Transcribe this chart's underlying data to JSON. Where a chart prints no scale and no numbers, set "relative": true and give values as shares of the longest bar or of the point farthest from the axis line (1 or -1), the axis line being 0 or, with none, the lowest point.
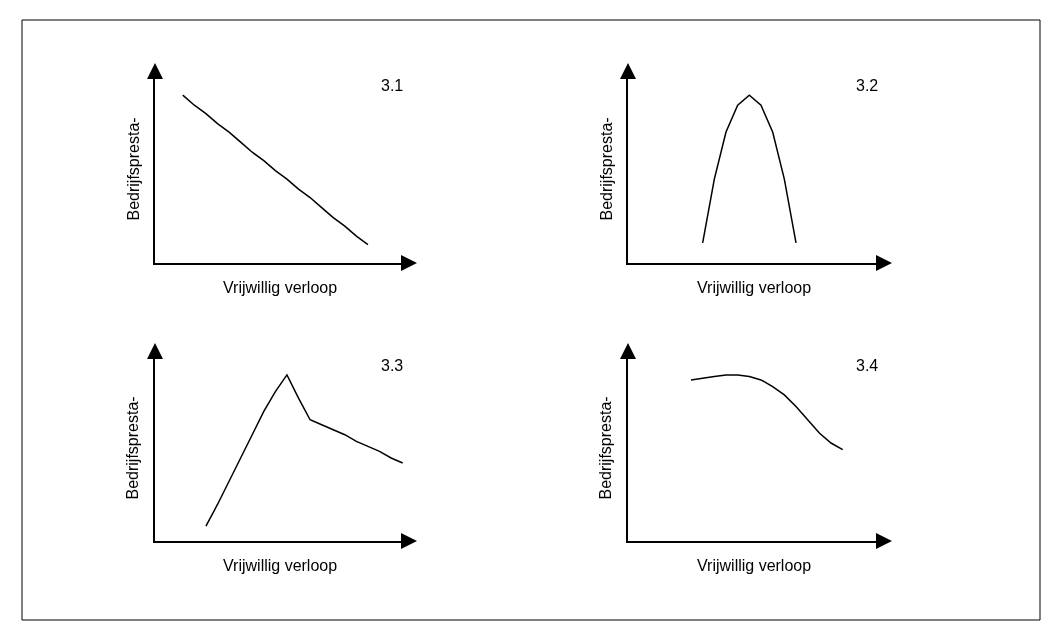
{
  "chart_data": [
    {
      "type": "line",
      "title": "3.1",
      "xlabel": "Vrijwillig verloop",
      "ylabel": "Bedrijfspresta-",
      "relative": true,
      "marker": "none",
      "line_style": "solid",
      "categories": [
        null,
        null,
        null,
        null,
        null,
        null,
        null,
        null,
        null,
        null,
        null,
        null,
        null,
        null,
        null,
        null,
        null,
        null,
        null,
        null,
        null
      ],
      "series": [
        {
          "color": "#000000",
          "values": [
            null,
            1.0,
            0.94,
            0.89,
            0.83,
            0.78,
            0.72,
            0.66,
            0.61,
            0.55,
            0.5,
            0.44,
            0.39,
            0.33,
            0.27,
            0.22,
            0.16,
            0.11,
            null,
            null,
            null
          ]
        }
      ]
    },
    {
      "type": "line",
      "title": "3.2",
      "xlabel": "Vrijwillig verloop",
      "ylabel": "Bedrijfspresta-",
      "relative": true,
      "marker": "none",
      "line_style": "solid",
      "categories": [
        null,
        null,
        null,
        null,
        null,
        null,
        null,
        null,
        null,
        null,
        null,
        null,
        null,
        null,
        null,
        null,
        null,
        null,
        null,
        null,
        null
      ],
      "series": [
        {
          "color": "#000000",
          "values": [
            null,
            null,
            null,
            null,
            null,
            0.12,
            0.5,
            0.78,
            0.94,
            1.0,
            0.94,
            0.78,
            0.5,
            0.12,
            null,
            null,
            null,
            null,
            null,
            null,
            null
          ]
        }
      ]
    },
    {
      "type": "line",
      "title": "3.3",
      "xlabel": "Vrijwillig verloop",
      "ylabel": "Bedrijfspresta-",
      "relative": true,
      "marker": "none",
      "line_style": "solid",
      "categories": [
        null,
        null,
        null,
        null,
        null,
        null,
        null,
        null,
        null,
        null,
        null,
        null,
        null,
        null,
        null,
        null,
        null,
        null,
        null,
        null,
        null
      ],
      "series": [
        {
          "color": "#000000",
          "values": [
            null,
            null,
            null,
            0.09,
            0.22,
            0.36,
            0.5,
            0.64,
            0.78,
            0.9,
            1.0,
            0.86,
            0.73,
            0.7,
            0.67,
            0.64,
            0.6,
            0.57,
            0.54,
            0.5,
            0.47
          ]
        }
      ]
    },
    {
      "type": "line",
      "title": "3.4",
      "xlabel": "Vrijwillig verloop",
      "ylabel": "Bedrijfspresta-",
      "relative": true,
      "marker": "none",
      "line_style": "solid",
      "categories": [
        null,
        null,
        null,
        null,
        null,
        null,
        null,
        null,
        null,
        null,
        null,
        null,
        null,
        null,
        null,
        null,
        null,
        null,
        null,
        null,
        null
      ],
      "series": [
        {
          "color": "#000000",
          "values": [
            null,
            null,
            null,
            null,
            0.97,
            0.98,
            0.99,
            1.0,
            1.0,
            0.99,
            0.97,
            0.93,
            0.88,
            0.81,
            0.73,
            0.65,
            0.59,
            0.55,
            null,
            null,
            null
          ]
        }
      ]
    }
  ]
}
